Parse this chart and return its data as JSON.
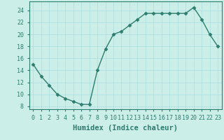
{
  "x": [
    0,
    1,
    2,
    3,
    4,
    5,
    6,
    7,
    8,
    9,
    10,
    11,
    12,
    13,
    14,
    15,
    16,
    17,
    18,
    19,
    20,
    21,
    22,
    23
  ],
  "y": [
    15,
    13,
    11.5,
    10,
    9.3,
    8.8,
    8.3,
    8.3,
    14,
    17.5,
    20,
    20.5,
    21.5,
    22.5,
    23.5,
    23.5,
    23.5,
    23.5,
    23.5,
    23.5,
    24.5,
    22.5,
    20,
    18
  ],
  "line_color": "#2d7d6e",
  "marker": "D",
  "marker_size": 2.5,
  "line_width": 1.0,
  "background_color": "#cceee8",
  "grid_color": "#aadddd",
  "xlabel": "Humidex (Indice chaleur)",
  "xlabel_fontsize": 7.5,
  "ylim": [
    7.5,
    25.5
  ],
  "xlim": [
    -0.5,
    23.5
  ],
  "yticks": [
    8,
    10,
    12,
    14,
    16,
    18,
    20,
    22,
    24
  ],
  "xticks": [
    0,
    1,
    2,
    3,
    4,
    5,
    6,
    7,
    8,
    9,
    10,
    11,
    12,
    13,
    14,
    15,
    16,
    17,
    18,
    19,
    20,
    21,
    22,
    23
  ],
  "tick_fontsize": 6.0,
  "tick_color": "#2d7d6e",
  "label_color": "#2d7d6e"
}
